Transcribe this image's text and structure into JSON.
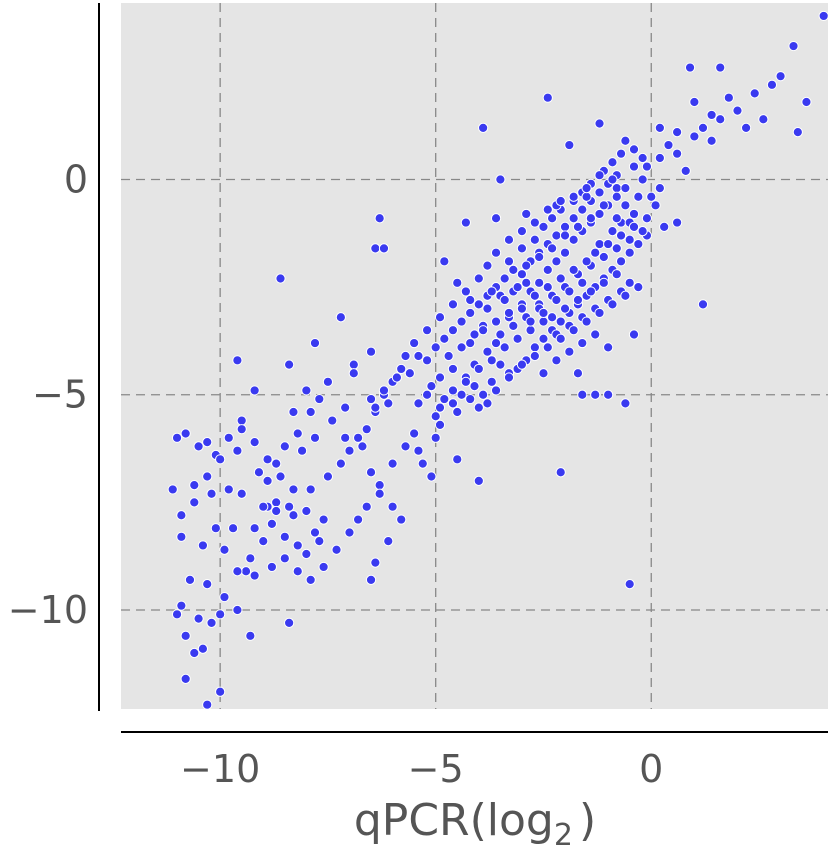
{
  "chart_data": {
    "type": "scatter",
    "title": "",
    "xlabel": "qPCR(log",
    "xlabel_subscript": "2",
    "xlabel_close": ")",
    "ylabel": "",
    "xlim": [
      -12.3,
      4.1
    ],
    "ylim": [
      -12.3,
      4.1
    ],
    "x_ticks": [
      -10,
      -5,
      0
    ],
    "y_ticks": [
      0,
      -5,
      -10
    ],
    "x_tick_labels": [
      "−10",
      "−5",
      "0"
    ],
    "y_tick_labels": [
      "0",
      "−5",
      "−10"
    ],
    "grid": true,
    "grid_style": "dashed",
    "background_color": "#e5e5e5",
    "point_color": "#3a3af0",
    "points": [
      [
        -11.1,
        -7.2
      ],
      [
        -11.0,
        -6.0
      ],
      [
        -10.8,
        -5.9
      ],
      [
        -10.5,
        -6.2
      ],
      [
        -10.3,
        -6.1
      ],
      [
        -10.1,
        -6.4
      ],
      [
        -10.6,
        -7.1
      ],
      [
        -10.2,
        -7.3
      ],
      [
        -9.8,
        -7.2
      ],
      [
        -9.7,
        -8.1
      ],
      [
        -10.9,
        -8.3
      ],
      [
        -10.4,
        -8.5
      ],
      [
        -10.1,
        -8.1
      ],
      [
        -9.9,
        -8.6
      ],
      [
        -10.7,
        -9.3
      ],
      [
        -10.3,
        -9.4
      ],
      [
        -9.9,
        -9.7
      ],
      [
        -10.0,
        -10.1
      ],
      [
        -10.5,
        -10.2
      ],
      [
        -10.8,
        -10.6
      ],
      [
        -10.6,
        -11.0
      ],
      [
        -10.2,
        -10.3
      ],
      [
        -10.9,
        -9.9
      ],
      [
        -11.0,
        -10.1
      ],
      [
        -10.0,
        -11.9
      ],
      [
        -10.3,
        -12.2
      ],
      [
        -10.8,
        -11.6
      ],
      [
        -10.4,
        -10.9
      ],
      [
        -9.3,
        -10.6
      ],
      [
        -9.6,
        -10.0
      ],
      [
        -9.4,
        -9.1
      ],
      [
        -9.2,
        -8.1
      ],
      [
        -8.9,
        -7.6
      ],
      [
        -8.7,
        -7.5
      ],
      [
        -8.4,
        -7.6
      ],
      [
        -8.3,
        -7.8
      ],
      [
        -8.2,
        -8.5
      ],
      [
        -8.0,
        -8.7
      ],
      [
        -7.8,
        -8.2
      ],
      [
        -7.6,
        -7.9
      ],
      [
        -7.9,
        -7.2
      ],
      [
        -7.5,
        -6.9
      ],
      [
        -7.2,
        -6.6
      ],
      [
        -7.0,
        -6.3
      ],
      [
        -6.8,
        -6.0
      ],
      [
        -6.6,
        -5.8
      ],
      [
        -6.4,
        -5.4
      ],
      [
        -6.2,
        -5.0
      ],
      [
        -6.0,
        -4.7
      ],
      [
        -5.8,
        -4.4
      ],
      [
        -5.6,
        -4.5
      ],
      [
        -5.4,
        -4.1
      ],
      [
        -5.2,
        -4.2
      ],
      [
        -5.0,
        -3.9
      ],
      [
        -4.8,
        -3.7
      ],
      [
        -4.6,
        -3.5
      ],
      [
        -4.4,
        -3.3
      ],
      [
        -4.2,
        -3.1
      ],
      [
        -4.0,
        -2.9
      ],
      [
        -3.8,
        -2.7
      ],
      [
        -3.6,
        -2.5
      ],
      [
        -3.4,
        -2.3
      ],
      [
        -3.2,
        -2.1
      ],
      [
        -3.0,
        -2.2
      ],
      [
        -2.8,
        -1.9
      ],
      [
        -2.6,
        -1.7
      ],
      [
        -2.4,
        -1.5
      ],
      [
        -2.2,
        -1.3
      ],
      [
        -2.0,
        -1.1
      ],
      [
        -1.8,
        -0.9
      ],
      [
        -1.6,
        -0.7
      ],
      [
        -1.4,
        -0.5
      ],
      [
        -1.2,
        -0.3
      ],
      [
        -1.0,
        -0.1
      ],
      [
        -0.8,
        0.1
      ],
      [
        -0.6,
        -0.2
      ],
      [
        -0.4,
        0.3
      ],
      [
        -0.2,
        0.0
      ],
      [
        0.0,
        -0.4
      ],
      [
        0.2,
        0.5
      ],
      [
        0.4,
        0.8
      ],
      [
        0.6,
        0.6
      ],
      [
        0.8,
        0.2
      ],
      [
        1.0,
        1.0
      ],
      [
        1.2,
        1.2
      ],
      [
        1.4,
        0.9
      ],
      [
        1.6,
        1.4
      ],
      [
        1.8,
        1.9
      ],
      [
        2.0,
        1.6
      ],
      [
        2.2,
        1.2
      ],
      [
        2.4,
        2.0
      ],
      [
        2.6,
        1.4
      ],
      [
        2.8,
        2.2
      ],
      [
        3.0,
        2.4
      ],
      [
        3.3,
        3.1
      ],
      [
        3.6,
        1.8
      ],
      [
        4.0,
        3.8
      ],
      [
        0.9,
        2.6
      ],
      [
        1.6,
        2.6
      ],
      [
        3.4,
        1.1
      ],
      [
        -3.9,
        1.2
      ],
      [
        -2.4,
        1.9
      ],
      [
        -1.9,
        0.8
      ],
      [
        -1.2,
        1.3
      ],
      [
        -0.6,
        0.9
      ],
      [
        -0.2,
        0.5
      ],
      [
        0.2,
        1.2
      ],
      [
        0.6,
        1.1
      ],
      [
        1.0,
        1.8
      ],
      [
        1.4,
        1.5
      ],
      [
        -6.3,
        -0.9
      ],
      [
        -6.4,
        -1.6
      ],
      [
        -6.2,
        -1.6
      ],
      [
        -8.6,
        -2.3
      ],
      [
        -6.5,
        -4.0
      ],
      [
        -6.9,
        -4.3
      ],
      [
        -7.2,
        -3.2
      ],
      [
        -7.8,
        -3.8
      ],
      [
        -8.4,
        -4.3
      ],
      [
        -9.6,
        -4.2
      ],
      [
        -9.2,
        -4.9
      ],
      [
        -9.5,
        -5.6
      ],
      [
        -9.6,
        -6.3
      ],
      [
        -9.1,
        -6.8
      ],
      [
        -8.2,
        -5.9
      ],
      [
        -8.1,
        -6.3
      ],
      [
        -7.8,
        -6.0
      ],
      [
        -7.4,
        -5.6
      ],
      [
        -7.7,
        -5.1
      ],
      [
        -7.9,
        -5.4
      ],
      [
        -7.1,
        -6.0
      ],
      [
        -6.7,
        -6.2
      ],
      [
        -6.5,
        -6.8
      ],
      [
        -6.3,
        -7.1
      ],
      [
        -6.0,
        -6.6
      ],
      [
        -5.7,
        -6.2
      ],
      [
        -5.4,
        -6.3
      ],
      [
        -5.3,
        -6.6
      ],
      [
        -5.1,
        -6.9
      ],
      [
        -5.0,
        -6.0
      ],
      [
        -4.9,
        -5.7
      ],
      [
        -4.6,
        -5.2
      ],
      [
        -4.4,
        -5.0
      ],
      [
        -4.1,
        -4.8
      ],
      [
        -4.0,
        -5.3
      ],
      [
        -3.8,
        -5.2
      ],
      [
        -3.7,
        -4.7
      ],
      [
        -3.5,
        -4.3
      ],
      [
        -3.3,
        -4.5
      ],
      [
        -3.1,
        -4.4
      ],
      [
        -2.9,
        -4.2
      ],
      [
        -2.7,
        -3.9
      ],
      [
        -2.5,
        -3.7
      ],
      [
        -2.3,
        -3.5
      ],
      [
        -2.1,
        -3.3
      ],
      [
        -1.9,
        -3.1
      ],
      [
        -1.7,
        -2.9
      ],
      [
        -1.5,
        -2.7
      ],
      [
        -1.3,
        -2.5
      ],
      [
        -1.1,
        -2.3
      ],
      [
        -0.9,
        -2.1
      ],
      [
        -0.7,
        -1.9
      ],
      [
        -0.5,
        -1.7
      ],
      [
        -0.3,
        -1.5
      ],
      [
        -0.1,
        -1.3
      ],
      [
        0.3,
        -1.1
      ],
      [
        -3.3,
        -1.9
      ],
      [
        -3.0,
        -1.6
      ],
      [
        -2.7,
        -1.4
      ],
      [
        -2.5,
        -1.1
      ],
      [
        -2.3,
        -0.9
      ],
      [
        -2.1,
        -0.7
      ],
      [
        -1.8,
        -0.5
      ],
      [
        -1.6,
        -0.3
      ],
      [
        -1.4,
        -0.1
      ],
      [
        -1.1,
        0.2
      ],
      [
        -0.9,
        0.4
      ],
      [
        -0.7,
        0.6
      ],
      [
        -0.4,
        0.7
      ],
      [
        -4.8,
        -1.9
      ],
      [
        -4.3,
        -1.0
      ],
      [
        -3.5,
        0.0
      ],
      [
        -3.6,
        -0.9
      ],
      [
        -2.9,
        -0.8
      ],
      [
        -2.2,
        -0.6
      ],
      [
        -1.5,
        -0.4
      ],
      [
        -0.8,
        -0.2
      ],
      [
        -4.5,
        -2.4
      ],
      [
        -4.2,
        -2.8
      ],
      [
        -3.9,
        -3.4
      ],
      [
        -3.6,
        -3.8
      ],
      [
        -3.3,
        -3.2
      ],
      [
        -3.0,
        -2.9
      ],
      [
        -2.8,
        -2.6
      ],
      [
        -2.6,
        -2.4
      ],
      [
        -2.4,
        -2.1
      ],
      [
        -2.2,
        -1.9
      ],
      [
        -2.0,
        -1.7
      ],
      [
        -1.8,
        -1.4
      ],
      [
        -1.6,
        -1.2
      ],
      [
        -1.4,
        -1.0
      ],
      [
        -1.2,
        -0.8
      ],
      [
        -1.0,
        -0.6
      ],
      [
        -0.8,
        -0.4
      ],
      [
        -0.6,
        -0.6
      ],
      [
        -4.1,
        -3.6
      ],
      [
        -3.8,
        -3.0
      ],
      [
        -3.5,
        -2.7
      ],
      [
        -3.2,
        -2.6
      ],
      [
        -2.9,
        -2.4
      ],
      [
        -2.6,
        -2.9
      ],
      [
        -2.3,
        -2.7
      ],
      [
        -2.0,
        -2.5
      ],
      [
        -1.7,
        -2.2
      ],
      [
        -1.4,
        -2.0
      ],
      [
        -1.1,
        -1.8
      ],
      [
        -0.8,
        -1.6
      ],
      [
        -0.5,
        -1.4
      ],
      [
        -0.2,
        -1.2
      ],
      [
        -4.7,
        -4.1
      ],
      [
        -4.4,
        -3.9
      ],
      [
        -4.1,
        -4.3
      ],
      [
        -3.8,
        -4.0
      ],
      [
        -3.5,
        -3.6
      ],
      [
        -3.2,
        -3.4
      ],
      [
        -2.9,
        -3.2
      ],
      [
        -2.6,
        -3.0
      ],
      [
        -2.3,
        -3.2
      ],
      [
        -2.0,
        -3.0
      ],
      [
        -1.7,
        -2.8
      ],
      [
        -1.4,
        -2.6
      ],
      [
        -1.1,
        -2.4
      ],
      [
        -0.8,
        -2.2
      ],
      [
        -0.5,
        -2.4
      ],
      [
        -4.9,
        -4.6
      ],
      [
        -4.6,
        -4.4
      ],
      [
        -4.3,
        -4.6
      ],
      [
        -4.0,
        -4.4
      ],
      [
        -3.7,
        -4.2
      ],
      [
        -3.4,
        -3.9
      ],
      [
        -3.1,
        -3.7
      ],
      [
        -2.8,
        -3.5
      ],
      [
        -2.5,
        -3.3
      ],
      [
        -2.2,
        -3.6
      ],
      [
        -1.9,
        -3.4
      ],
      [
        -1.6,
        -3.2
      ],
      [
        -1.3,
        -3.0
      ],
      [
        -1.0,
        -2.8
      ],
      [
        -0.7,
        -2.6
      ],
      [
        -5.2,
        -5.0
      ],
      [
        -4.9,
        -5.3
      ],
      [
        -4.5,
        -5.4
      ],
      [
        -4.2,
        -5.1
      ],
      [
        -3.9,
        -5.0
      ],
      [
        -3.6,
        -4.9
      ],
      [
        -3.3,
        -4.6
      ],
      [
        -3.0,
        -4.3
      ],
      [
        -2.7,
        -4.1
      ],
      [
        -2.4,
        -3.9
      ],
      [
        -2.1,
        -3.7
      ],
      [
        -1.8,
        -3.5
      ],
      [
        -1.5,
        -3.3
      ],
      [
        -1.2,
        -3.1
      ],
      [
        -0.9,
        -2.9
      ],
      [
        -0.6,
        -2.7
      ],
      [
        -0.3,
        -2.5
      ],
      [
        -2.5,
        -4.5
      ],
      [
        -2.2,
        -4.2
      ],
      [
        -1.9,
        -4.0
      ],
      [
        -1.6,
        -3.8
      ],
      [
        -1.3,
        -3.6
      ],
      [
        -1.0,
        -3.9
      ],
      [
        -1.7,
        -4.5
      ],
      [
        -1.6,
        -5.0
      ],
      [
        -1.3,
        -5.0
      ],
      [
        -1.0,
        -5.0
      ],
      [
        -0.6,
        -5.2
      ],
      [
        -0.5,
        -9.4
      ],
      [
        -2.1,
        -6.8
      ],
      [
        -4.0,
        -7.0
      ],
      [
        -4.5,
        -6.5
      ],
      [
        -5.0,
        -5.5
      ],
      [
        -5.5,
        -5.9
      ],
      [
        -6.1,
        -5.2
      ],
      [
        -6.5,
        -5.1
      ],
      [
        -6.9,
        -4.5
      ],
      [
        -7.1,
        -5.3
      ],
      [
        -7.5,
        -4.7
      ],
      [
        -8.0,
        -4.9
      ],
      [
        -8.3,
        -5.4
      ],
      [
        -8.5,
        -6.2
      ],
      [
        -8.7,
        -6.6
      ],
      [
        -8.9,
        -7.0
      ],
      [
        -9.0,
        -8.4
      ],
      [
        -9.3,
        -8.8
      ],
      [
        -9.6,
        -9.1
      ],
      [
        -9.2,
        -9.2
      ],
      [
        -8.8,
        -9.0
      ],
      [
        -8.5,
        -8.8
      ],
      [
        -8.2,
        -9.1
      ],
      [
        -7.9,
        -9.3
      ],
      [
        -7.6,
        -9.0
      ],
      [
        -7.3,
        -8.6
      ],
      [
        -7.0,
        -8.2
      ],
      [
        -6.8,
        -7.9
      ],
      [
        -6.6,
        -7.6
      ],
      [
        -6.3,
        -7.3
      ],
      [
        -6.0,
        -7.6
      ],
      [
        -5.8,
        -7.9
      ],
      [
        -6.1,
        -8.4
      ],
      [
        -6.4,
        -8.9
      ],
      [
        -6.5,
        -9.3
      ],
      [
        -7.7,
        -8.4
      ],
      [
        -8.0,
        -7.7
      ],
      [
        -8.3,
        -7.2
      ],
      [
        -8.6,
        -6.9
      ],
      [
        -8.9,
        -6.5
      ],
      [
        -9.2,
        -6.1
      ],
      [
        -9.5,
        -5.8
      ],
      [
        -9.8,
        -6.0
      ],
      [
        -10.0,
        -6.5
      ],
      [
        -10.3,
        -6.9
      ],
      [
        -10.6,
        -7.5
      ],
      [
        -10.9,
        -7.8
      ],
      [
        -8.4,
        -10.3
      ],
      [
        -9.5,
        -7.3
      ],
      [
        -9.0,
        -7.6
      ],
      [
        -8.8,
        -8.0
      ],
      [
        -8.5,
        -8.3
      ],
      [
        -8.7,
        -7.7
      ],
      [
        -5.4,
        -5.2
      ],
      [
        -5.1,
        -4.8
      ],
      [
        -4.8,
        -5.1
      ],
      [
        -4.6,
        -4.9
      ],
      [
        -4.3,
        -4.7
      ],
      [
        -0.4,
        -3.6
      ],
      [
        1.2,
        -2.9
      ],
      [
        0.6,
        -1.0
      ],
      [
        0.2,
        -0.2
      ],
      [
        -0.1,
        0.3
      ],
      [
        -1.2,
        -1.5
      ],
      [
        -0.9,
        -1.2
      ],
      [
        -0.7,
        -1.0
      ],
      [
        -0.4,
        -0.8
      ],
      [
        -1.5,
        -1.9
      ],
      [
        -1.8,
        -2.1
      ],
      [
        -2.1,
        -2.3
      ],
      [
        -2.4,
        -2.5
      ],
      [
        -2.7,
        -2.7
      ],
      [
        -3.0,
        -3.0
      ],
      [
        -3.3,
        -3.1
      ],
      [
        -3.6,
        -3.3
      ],
      [
        -3.9,
        -3.5
      ],
      [
        -4.2,
        -3.8
      ],
      [
        -2.0,
        -1.3
      ],
      [
        -1.7,
        -1.1
      ],
      [
        -1.4,
        -0.9
      ],
      [
        -1.1,
        -0.6
      ],
      [
        -0.8,
        -0.9
      ],
      [
        -0.5,
        -1.0
      ],
      [
        -2.9,
        -2.0
      ],
      [
        -2.6,
        -1.8
      ],
      [
        -2.3,
        -1.6
      ],
      [
        -3.1,
        -2.5
      ],
      [
        -3.4,
        -2.8
      ],
      [
        -3.7,
        -2.6
      ],
      [
        -1.6,
        -2.4
      ],
      [
        -1.9,
        -2.6
      ],
      [
        -2.2,
        -2.8
      ],
      [
        -2.5,
        -3.1
      ],
      [
        -2.8,
        -3.3
      ],
      [
        -1.3,
        -1.7
      ],
      [
        -1.0,
        -1.5
      ],
      [
        -0.7,
        -1.3
      ],
      [
        -0.4,
        -1.1
      ],
      [
        -0.1,
        -0.9
      ],
      [
        0.1,
        -0.6
      ],
      [
        -0.3,
        -0.4
      ],
      [
        -0.6,
        -0.2
      ],
      [
        -0.9,
        0.0
      ],
      [
        -1.2,
        0.1
      ],
      [
        -1.5,
        -0.2
      ],
      [
        -1.8,
        -0.4
      ],
      [
        -2.1,
        -0.5
      ],
      [
        -2.4,
        -0.7
      ],
      [
        -2.7,
        -1.0
      ],
      [
        -3.0,
        -1.2
      ],
      [
        -3.3,
        -1.4
      ],
      [
        -3.6,
        -1.7
      ],
      [
        -3.8,
        -2.0
      ],
      [
        -4.0,
        -2.3
      ],
      [
        -4.3,
        -2.6
      ],
      [
        -4.6,
        -2.9
      ],
      [
        -4.9,
        -3.2
      ],
      [
        -5.2,
        -3.5
      ],
      [
        -5.5,
        -3.8
      ],
      [
        -5.7,
        -4.1
      ],
      [
        -5.9,
        -4.6
      ],
      [
        -6.2,
        -4.9
      ],
      [
        -6.4,
        -5.3
      ]
    ]
  }
}
